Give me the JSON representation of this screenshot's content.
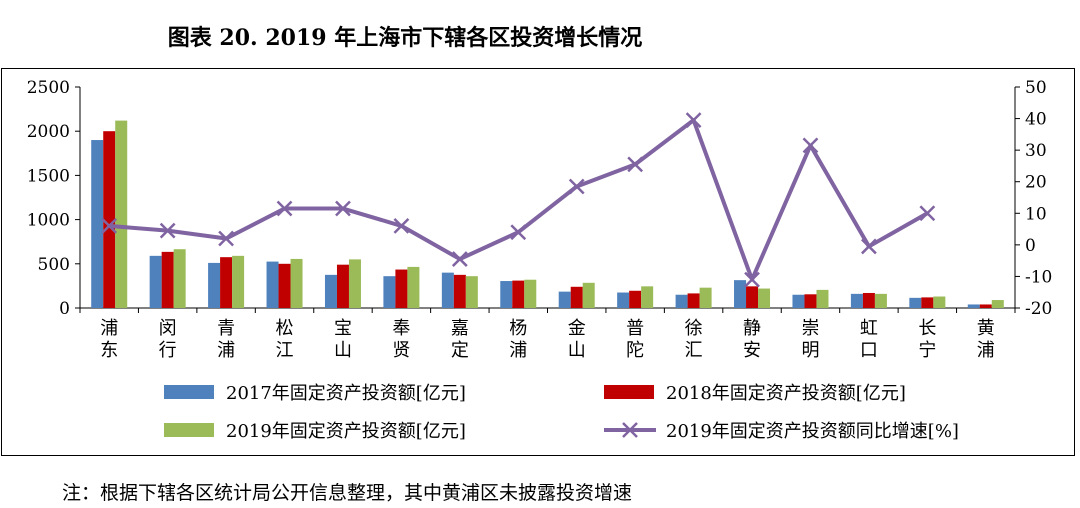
{
  "title": "图表 20. 2019 年上海市下辖各区投资增长情况",
  "note": "注：根据下辖各区统计局公开信息整理，其中黄浦区未披露投资增速",
  "chart_data": {
    "type": "bar",
    "categories": [
      "浦东",
      "闵行",
      "青浦",
      "松江",
      "宝山",
      "奉贤",
      "嘉定",
      "杨浦",
      "金山",
      "普陀",
      "徐汇",
      "静安",
      "崇明",
      "虹口",
      "长宁",
      "黄浦"
    ],
    "series": [
      {
        "name": "2017年固定资产投资额[亿元]",
        "type": "bar",
        "axis": "left",
        "color": "#4F81BD",
        "values": [
          1900,
          590,
          510,
          525,
          375,
          360,
          400,
          305,
          185,
          175,
          150,
          315,
          150,
          160,
          115,
          40
        ]
      },
      {
        "name": "2018年固定资产投资额[亿元]",
        "type": "bar",
        "axis": "left",
        "color": "#C00000",
        "values": [
          2000,
          635,
          575,
          500,
          490,
          435,
          375,
          310,
          240,
          195,
          165,
          245,
          155,
          170,
          120,
          40
        ]
      },
      {
        "name": "2019年固定资产投资额[亿元]",
        "type": "bar",
        "axis": "left",
        "color": "#9BBB59",
        "values": [
          2120,
          665,
          590,
          555,
          550,
          465,
          360,
          320,
          285,
          245,
          230,
          220,
          205,
          160,
          130,
          90
        ]
      },
      {
        "name": "2019年固定资产投资额同比增速[%]",
        "type": "line",
        "axis": "right",
        "color": "#8064A2",
        "values": [
          6,
          4.5,
          2,
          11.5,
          11.5,
          6,
          -4.5,
          4,
          18.5,
          25.5,
          39.5,
          -11,
          31.5,
          -0.5,
          10,
          null
        ]
      }
    ],
    "ylim_left": [
      0,
      2500
    ],
    "yticks_left": [
      0,
      500,
      1000,
      1500,
      2000,
      2500
    ],
    "ylim_right": [
      -20,
      50
    ],
    "yticks_right": [
      -20,
      -10,
      0,
      10,
      20,
      30,
      40,
      50
    ],
    "grid": false,
    "legend_position": "bottom"
  }
}
